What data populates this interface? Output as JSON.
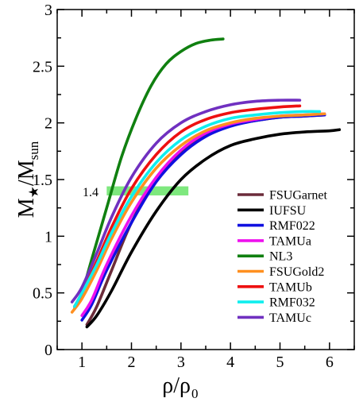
{
  "chart_data": {
    "type": "line",
    "xlabel": {
      "main": "ρ/ρ",
      "sub": "0"
    },
    "ylabel": {
      "main": "M",
      "sub1": "★",
      "mid": "/M",
      "sub2": "sun"
    },
    "xlim": [
      0.5,
      6.5
    ],
    "ylim": [
      0,
      3
    ],
    "xticks": [
      1,
      2,
      3,
      4,
      5,
      6
    ],
    "yticks": [
      0,
      0.5,
      1,
      1.5,
      2,
      2.5,
      3
    ],
    "ytick_labels": [
      "0",
      "0.5",
      "1",
      "1.5",
      "2",
      "2.5",
      "3"
    ],
    "grid": false,
    "legend_position": "bottom-right",
    "annotation": {
      "label": "1.4",
      "band": {
        "x_range": [
          1.5,
          3.15
        ],
        "y_range": [
          1.36,
          1.44
        ],
        "color": "#7ee87e"
      }
    },
    "series": [
      {
        "name": "FSUGarnet",
        "color": "#6b2c3a",
        "x": [
          1.1,
          1.3,
          1.6,
          2.0,
          2.5,
          3.0,
          3.5,
          4.0,
          4.5,
          5.0,
          5.5,
          5.9
        ],
        "y": [
          0.22,
          0.38,
          0.7,
          1.12,
          1.5,
          1.75,
          1.9,
          1.98,
          2.02,
          2.05,
          2.06,
          2.07
        ]
      },
      {
        "name": "IUFSU",
        "color": "#000000",
        "x": [
          1.1,
          1.3,
          1.6,
          2.0,
          2.5,
          3.0,
          3.5,
          4.0,
          4.5,
          5.0,
          5.5,
          6.0,
          6.2
        ],
        "y": [
          0.2,
          0.3,
          0.52,
          0.86,
          1.22,
          1.5,
          1.68,
          1.8,
          1.86,
          1.9,
          1.92,
          1.93,
          1.94
        ]
      },
      {
        "name": "RMF022",
        "color": "#1010e0",
        "x": [
          1.0,
          1.2,
          1.5,
          2.0,
          2.5,
          3.0,
          3.5,
          4.0,
          4.5,
          5.0,
          5.5,
          5.9
        ],
        "y": [
          0.26,
          0.4,
          0.7,
          1.12,
          1.48,
          1.72,
          1.88,
          1.97,
          2.02,
          2.05,
          2.06,
          2.07
        ]
      },
      {
        "name": "TAMUa",
        "color": "#ee10ee",
        "x": [
          1.0,
          1.2,
          1.5,
          2.0,
          2.5,
          3.0,
          3.5,
          4.0,
          4.5,
          5.0,
          5.5,
          5.9
        ],
        "y": [
          0.3,
          0.44,
          0.75,
          1.18,
          1.52,
          1.76,
          1.91,
          1.99,
          2.03,
          2.06,
          2.07,
          2.08
        ]
      },
      {
        "name": "NL3",
        "color": "#108010",
        "x": [
          0.85,
          1.0,
          1.2,
          1.5,
          1.8,
          2.1,
          2.4,
          2.7,
          3.0,
          3.3,
          3.6,
          3.85
        ],
        "y": [
          0.36,
          0.5,
          0.8,
          1.25,
          1.7,
          2.05,
          2.33,
          2.52,
          2.63,
          2.7,
          2.73,
          2.74
        ]
      },
      {
        "name": "FSUGold2",
        "color": "#ff9020",
        "x": [
          0.8,
          1.0,
          1.3,
          1.6,
          2.0,
          2.5,
          3.0,
          3.5,
          4.0,
          4.5,
          5.0,
          5.5,
          5.9
        ],
        "y": [
          0.33,
          0.45,
          0.7,
          0.98,
          1.3,
          1.6,
          1.8,
          1.93,
          2.0,
          2.04,
          2.06,
          2.07,
          2.08
        ]
      },
      {
        "name": "TAMUb",
        "color": "#ee1010",
        "x": [
          0.85,
          1.0,
          1.3,
          1.6,
          2.0,
          2.5,
          3.0,
          3.5,
          4.0,
          4.5,
          5.0,
          5.4
        ],
        "y": [
          0.38,
          0.5,
          0.78,
          1.08,
          1.42,
          1.72,
          1.92,
          2.03,
          2.09,
          2.12,
          2.14,
          2.15
        ]
      },
      {
        "name": "RMF032",
        "color": "#10eeee",
        "x": [
          0.85,
          1.0,
          1.3,
          1.6,
          2.0,
          2.5,
          3.0,
          3.5,
          4.0,
          4.5,
          5.0,
          5.5,
          5.8
        ],
        "y": [
          0.38,
          0.5,
          0.75,
          1.03,
          1.35,
          1.65,
          1.85,
          1.97,
          2.04,
          2.07,
          2.09,
          2.1,
          2.1
        ]
      },
      {
        "name": "TAMUc",
        "color": "#7030c0",
        "x": [
          0.8,
          1.0,
          1.3,
          1.6,
          2.0,
          2.5,
          3.0,
          3.5,
          4.0,
          4.5,
          5.0,
          5.4
        ],
        "y": [
          0.42,
          0.55,
          0.85,
          1.17,
          1.52,
          1.82,
          2.0,
          2.1,
          2.16,
          2.19,
          2.2,
          2.2
        ]
      }
    ]
  }
}
